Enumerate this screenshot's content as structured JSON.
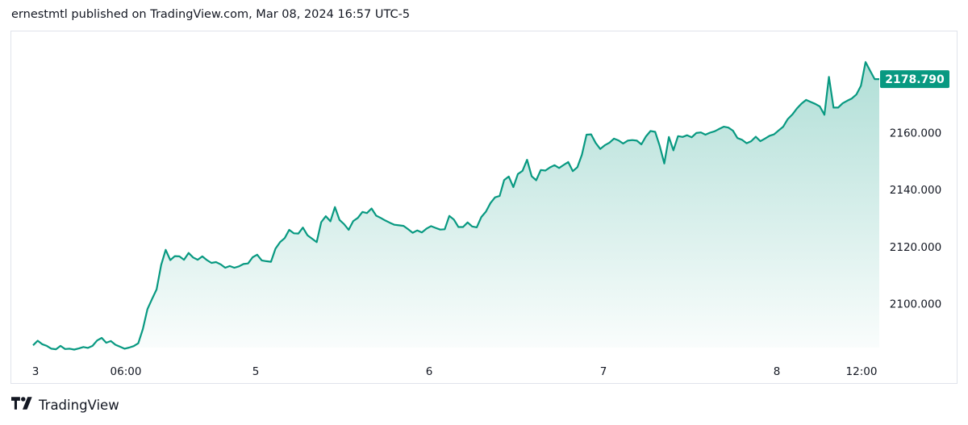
{
  "header": {
    "published_text": "ernestmtl published on TradingView.com, Mar 08, 2024 16:57 UTC-5"
  },
  "footer": {
    "brand": "TradingView",
    "logo_icon": "tradingview-logo-icon"
  },
  "colors": {
    "line": "#089981",
    "fill_top": "#089981",
    "price_label_bg": "#089981",
    "border": "#e0e3eb",
    "text": "#131722"
  },
  "chart_data": {
    "type": "area",
    "title": "",
    "xlabel": "",
    "ylabel": "",
    "x_ticks": [
      "3",
      "06:00",
      "5",
      "6",
      "7",
      "8",
      "12:00"
    ],
    "y_ticks": [
      "2100.000",
      "2120.000",
      "2140.000",
      "2160.000"
    ],
    "ylim": [
      2084.6,
      2195.8
    ],
    "last_price": "2178.790",
    "grid": false,
    "series": [
      {
        "values": [
          2085.4,
          2087.0,
          2085.8,
          2085.2,
          2084.2,
          2084.0,
          2085.2,
          2084.1,
          2084.2,
          2083.9,
          2084.3,
          2084.8,
          2084.5,
          2085.2,
          2087.1,
          2088.0,
          2086.3,
          2086.9,
          2085.6,
          2084.9,
          2084.2,
          2084.6,
          2085.1,
          2086.1,
          2091.1,
          2098.1,
          2101.6,
          2105.0,
          2113.6,
          2118.9,
          2115.3,
          2116.7,
          2116.6,
          2115.4,
          2117.8,
          2116.2,
          2115.4,
          2116.6,
          2115.3,
          2114.3,
          2114.6,
          2113.8,
          2112.6,
          2113.2,
          2112.6,
          2113.1,
          2113.9,
          2114.1,
          2116.3,
          2117.2,
          2115.2,
          2114.9,
          2114.7,
          2119.3,
          2121.6,
          2123.0,
          2125.9,
          2124.7,
          2124.6,
          2126.7,
          2124.0,
          2122.8,
          2121.6,
          2128.6,
          2130.7,
          2128.9,
          2133.9,
          2129.4,
          2127.9,
          2125.9,
          2129.0,
          2130.1,
          2132.2,
          2131.8,
          2133.4,
          2130.9,
          2130.1,
          2129.2,
          2128.4,
          2127.7,
          2127.5,
          2127.3,
          2126.1,
          2124.9,
          2125.7,
          2125.0,
          2126.3,
          2127.2,
          2126.6,
          2126.0,
          2126.1,
          2130.8,
          2129.5,
          2126.9,
          2126.9,
          2128.5,
          2127.1,
          2126.8,
          2130.4,
          2132.3,
          2135.3,
          2137.3,
          2137.8,
          2143.4,
          2144.6,
          2140.9,
          2145.5,
          2146.6,
          2150.5,
          2144.7,
          2143.3,
          2146.9,
          2146.7,
          2147.8,
          2148.6,
          2147.6,
          2148.7,
          2149.7,
          2146.5,
          2147.9,
          2152.3,
          2159.3,
          2159.4,
          2156.4,
          2154.3,
          2155.6,
          2156.5,
          2157.9,
          2157.3,
          2156.2,
          2157.2,
          2157.4,
          2157.2,
          2155.9,
          2158.7,
          2160.6,
          2160.3,
          2155.4,
          2149.2,
          2158.5,
          2153.8,
          2158.8,
          2158.5,
          2159.1,
          2158.4,
          2159.9,
          2160.1,
          2159.3,
          2160.0,
          2160.5,
          2161.3,
          2162.1,
          2161.8,
          2160.7,
          2158.1,
          2157.5,
          2156.3,
          2157.0,
          2158.6,
          2157.0,
          2157.9,
          2158.9,
          2159.4,
          2160.8,
          2162.1,
          2164.8,
          2166.4,
          2168.5,
          2170.2,
          2171.5,
          2170.8,
          2170.1,
          2169.2,
          2166.3,
          2179.6,
          2168.8,
          2168.8,
          2170.3,
          2171.2,
          2172.0,
          2173.4,
          2176.5,
          2184.8,
          2181.7,
          2178.8,
          2178.79
        ]
      }
    ]
  }
}
